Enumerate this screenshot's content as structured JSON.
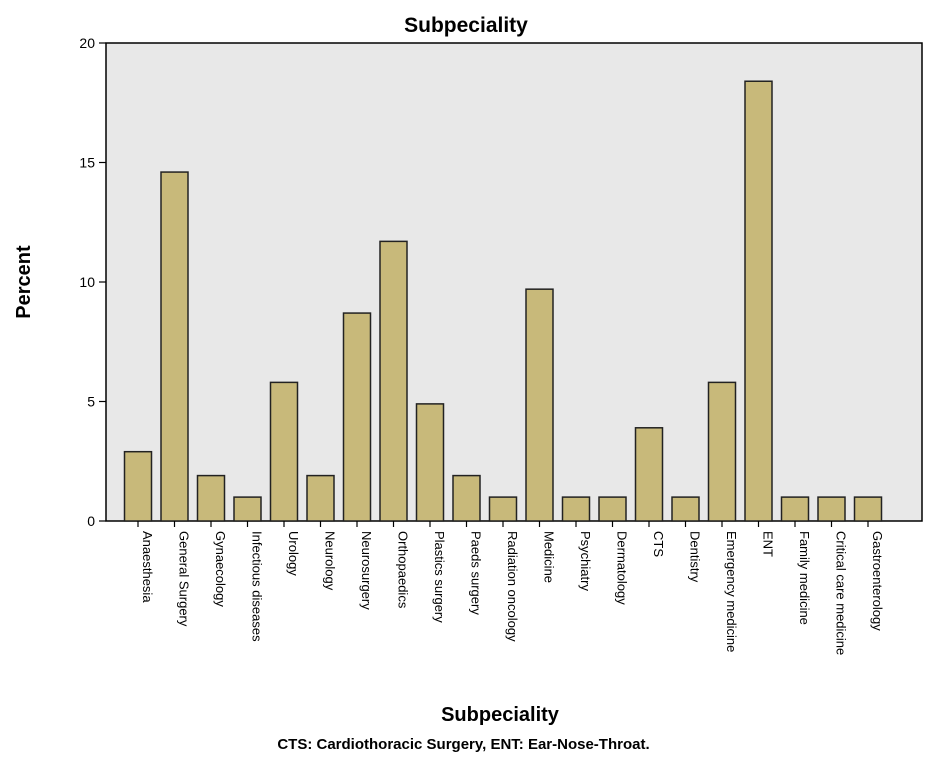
{
  "chart_data": {
    "type": "bar",
    "title": "Subpeciality",
    "xlabel": "Subpeciality",
    "ylabel": "Percent",
    "ylim": [
      0,
      20
    ],
    "yticks": [
      "0",
      "5",
      "10",
      "15",
      "20"
    ],
    "grid": false,
    "legend": "none",
    "categories": [
      "Anaesthesia",
      "General Surgery",
      "Gynaecology",
      "Infectious diseases",
      "Urology",
      "Neurology",
      "Neurosurgery",
      "Orthopaedics",
      "Plastics surgery",
      "Paeds surgery",
      "Radiation oncology",
      "Medicine",
      "Psychiatry",
      "Dermatology",
      "CTS",
      "Dentistry",
      "Emergency medicine",
      "ENT",
      "Family medicine",
      "Critical care medicine",
      "Gastroenterology"
    ],
    "values": [
      2.9,
      14.6,
      1.9,
      1.0,
      5.8,
      1.9,
      8.7,
      11.7,
      4.9,
      1.9,
      1.0,
      9.7,
      1.0,
      1.0,
      3.9,
      1.0,
      5.8,
      18.4,
      1.0,
      1.0,
      1.0
    ],
    "colors": {
      "bar_fill": "#c8b97a",
      "bar_stroke": "#222222",
      "plot_bg": "#e8e8e8"
    }
  },
  "footnote": "CTS: Cardiothoracic Surgery, ENT: Ear-Nose-Throat."
}
